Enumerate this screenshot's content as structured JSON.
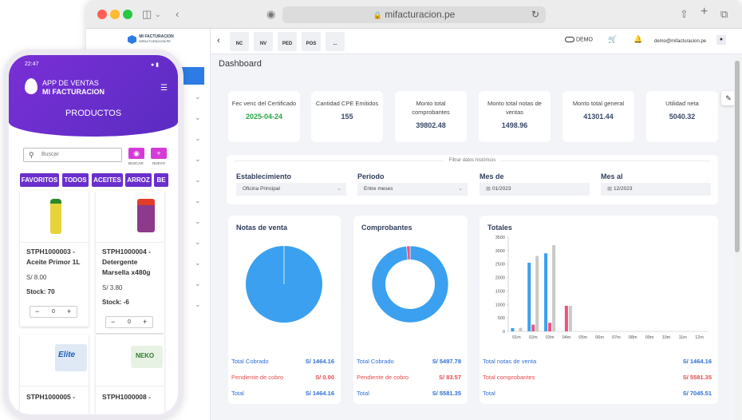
{
  "browser": {
    "url": "mifacturacion.pe"
  },
  "sidebar": {
    "brand_line1": "MI FACTURACION",
    "brand_line2": "MIFACTURACION.PE"
  },
  "topbar": {
    "tabs": [
      "NC",
      "NV",
      "PED",
      "POS",
      "..."
    ],
    "demo_label": "DEMO",
    "user_email": "demo@mifacturacion.pe"
  },
  "page": {
    "title": "Dashboard"
  },
  "stats": [
    {
      "label": "Fec venc del Certificado",
      "value": "2025-04-24",
      "color": "#28a745"
    },
    {
      "label": "Cantidad CPE Emitidos",
      "value": "155"
    },
    {
      "label": "Monto total comprobantes",
      "value": "39802.48"
    },
    {
      "label": "Monto total notas de ventas",
      "value": "1498.96"
    },
    {
      "label": "Monto total general",
      "value": "41301.44"
    },
    {
      "label": "Utilidad neta",
      "value": "5040.32"
    }
  ],
  "filter": {
    "title": "Filtrar datos históricos",
    "establecimiento": {
      "label": "Establecimiento",
      "value": "Oficina Principal"
    },
    "periodo": {
      "label": "Periodo",
      "value": "Entre meses"
    },
    "mes_de": {
      "label": "Mes de",
      "value": "01/2023"
    },
    "mes_al": {
      "label": "Mes al",
      "value": "12/2023"
    }
  },
  "cards": {
    "notas": {
      "title": "Notas de venta",
      "rows": [
        {
          "k": "Total Cobrado",
          "v": "S/ 1464.16"
        },
        {
          "k": "Pendiente de cobro",
          "v": "S/ 0.00"
        },
        {
          "k": "Total",
          "v": "S/ 1464.16"
        }
      ]
    },
    "comprobantes": {
      "title": "Comprobantes",
      "rows": [
        {
          "k": "Total Cobrado",
          "v": "S/ 5497.78"
        },
        {
          "k": "Pendiente de cobro",
          "v": "S/ 83.57"
        },
        {
          "k": "Total",
          "v": "S/ 5581.35"
        }
      ]
    },
    "totales": {
      "title": "Totales",
      "rows": [
        {
          "k": "Total notas de venta",
          "v": "S/ 1464.16"
        },
        {
          "k": "Total comprobantes",
          "v": "S/ 5581.35"
        },
        {
          "k": "Total",
          "v": "S/ 7045.51"
        }
      ]
    }
  },
  "colors": {
    "blue": "#3aa0ef",
    "pink": "#f0527a",
    "gray": "#c9c9c9",
    "accent": "#2d7be5",
    "purple": "#6a2fcc"
  },
  "chart_data": [
    {
      "type": "pie",
      "title": "Notas de venta",
      "values": [
        1464.16,
        0.0
      ]
    },
    {
      "type": "pie",
      "title": "Comprobantes",
      "values": [
        5497.78,
        83.57
      ]
    },
    {
      "type": "bar",
      "title": "Totales",
      "categories": [
        "01m",
        "02m",
        "03m",
        "04m",
        "05m",
        "06m",
        "07m",
        "08m",
        "09m",
        "10m",
        "11m",
        "12m"
      ],
      "series": [
        {
          "values": [
            120,
            2550,
            2900,
            0,
            0,
            0,
            0,
            0,
            0,
            0,
            0,
            0
          ]
        },
        {
          "values": [
            0,
            250,
            320,
            950,
            0,
            0,
            0,
            0,
            0,
            0,
            0,
            0
          ]
        },
        {
          "values": [
            130,
            2800,
            3200,
            950,
            0,
            0,
            0,
            0,
            0,
            0,
            0,
            0
          ]
        }
      ],
      "yticks": [
        "0",
        "500",
        "1000",
        "1500",
        "2000",
        "2500",
        "3000",
        "3500"
      ],
      "ylim": [
        0,
        3500
      ]
    }
  ],
  "phone": {
    "time": "22:47",
    "brand_line1": "APP DE VENTAS",
    "brand_line2": "MI FACTURACION",
    "title": "PRODUCTOS",
    "search_placeholder": "Buscar",
    "buscar_label": "BUSCAR",
    "nuevo_label": "NUEVO",
    "categories": [
      "FAVORITOS",
      "TODOS",
      "ACEITES",
      "ARROZ",
      "BE"
    ],
    "products": [
      {
        "name": "STPH1000003 - Aceite Primor 1L",
        "price": "S/ 8.00",
        "stock": "Stock: 70",
        "qty": "0"
      },
      {
        "name": "STPH1000004 - Detergente Marsella x480g",
        "price": "S/ 3.80",
        "stock": "Stock: -6",
        "qty": "0"
      },
      {
        "name": "STPH1000005 -",
        "logo": "Elite"
      },
      {
        "name": "STPH1000008 -",
        "logo": "NEKO"
      }
    ]
  }
}
